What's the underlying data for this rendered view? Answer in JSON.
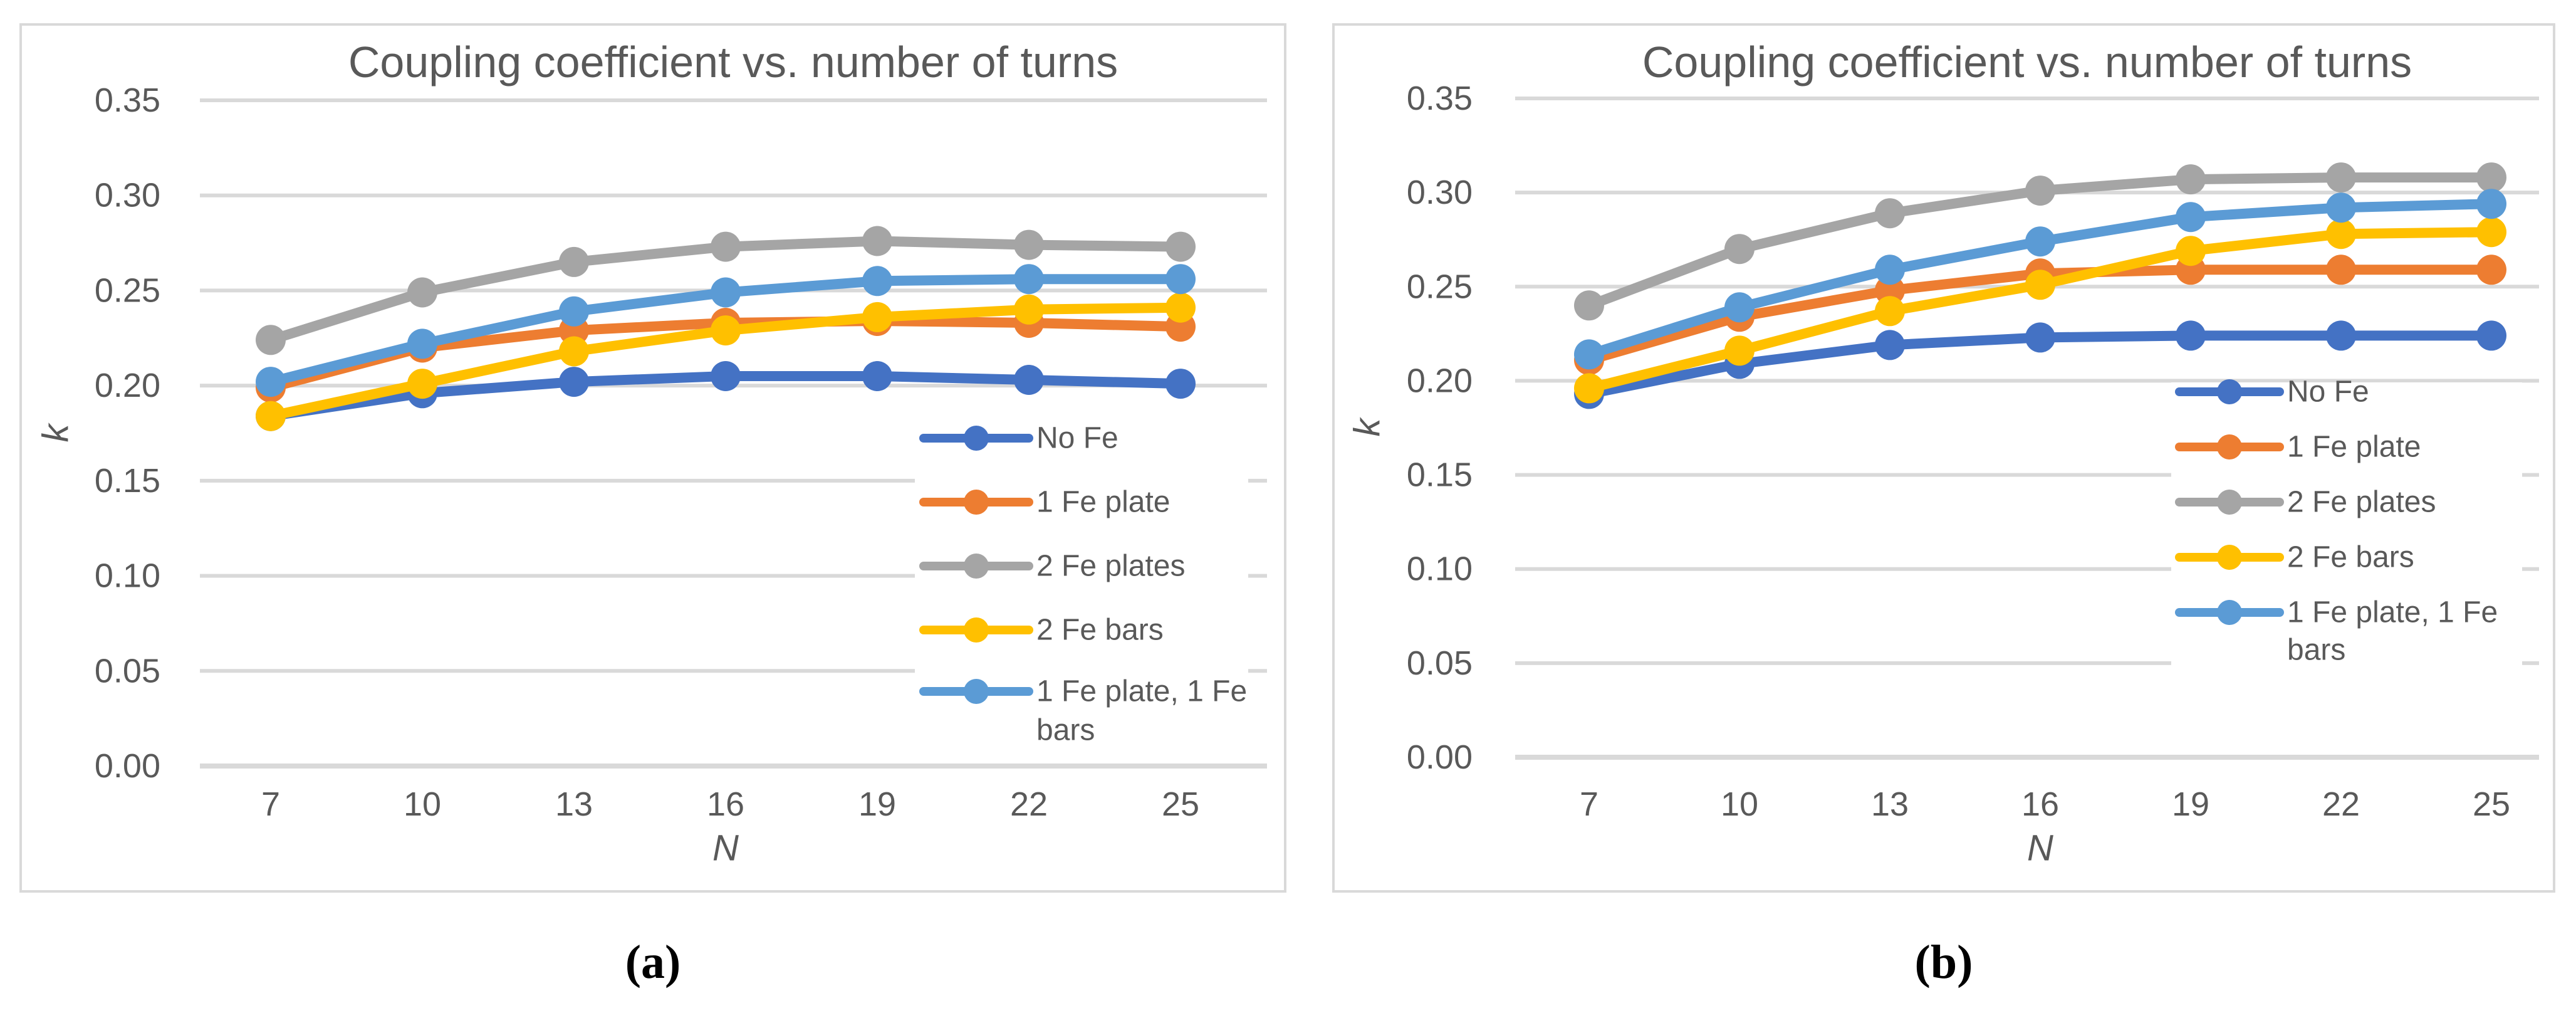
{
  "figure": {
    "captions": [
      "(a)",
      "(b)"
    ]
  },
  "palette": {
    "series_blue": "#4472C4",
    "series_orange": "#ED7D31",
    "series_gray": "#A5A5A5",
    "series_yellow": "#FFC000",
    "series_light_blue": "#5B9BD5",
    "gridline": "#D9D9D9",
    "panel_border": "#D9D9D9",
    "chart_text": "#595959",
    "caption_text": "#000000",
    "background": "#FFFFFF"
  },
  "chart_data": [
    {
      "type": "line",
      "panel": "a",
      "title": "Coupling coefficient vs. number of turns",
      "xlabel": "N",
      "ylabel": "k",
      "x": [
        7,
        10,
        13,
        16,
        19,
        22,
        25
      ],
      "x_tick_labels": [
        "7",
        "10",
        "13",
        "16",
        "19",
        "22",
        "25"
      ],
      "y_tick_labels": [
        "0.00",
        "0.05",
        "0.10",
        "0.15",
        "0.20",
        "0.25",
        "0.30",
        "0.35"
      ],
      "ylim": [
        0,
        0.35
      ],
      "ytick_step": 0.05,
      "grid": true,
      "legend_position": "inside-lower-right",
      "series": [
        {
          "name": "No Fe",
          "color": "#4472C4",
          "values": [
            0.184,
            0.196,
            0.202,
            0.205,
            0.205,
            0.203,
            0.201
          ]
        },
        {
          "name": "1 Fe plate",
          "color": "#ED7D31",
          "values": [
            0.199,
            0.22,
            0.229,
            0.233,
            0.234,
            0.233,
            0.231
          ]
        },
        {
          "name": "2 Fe plates",
          "color": "#A5A5A5",
          "values": [
            0.224,
            0.249,
            0.265,
            0.273,
            0.276,
            0.274,
            0.273
          ]
        },
        {
          "name": "2 Fe bars",
          "color": "#FFC000",
          "values": [
            0.184,
            0.201,
            0.218,
            0.229,
            0.236,
            0.24,
            0.241
          ]
        },
        {
          "name": "1 Fe plate, 1 Fe bars",
          "color": "#5B9BD5",
          "values": [
            0.202,
            0.222,
            0.239,
            0.249,
            0.255,
            0.256,
            0.256
          ]
        }
      ]
    },
    {
      "type": "line",
      "panel": "b",
      "title": "Coupling coefficient vs. number of turns",
      "xlabel": "N",
      "ylabel": "k",
      "x": [
        7,
        10,
        13,
        16,
        19,
        22,
        25
      ],
      "x_tick_labels": [
        "7",
        "10",
        "13",
        "16",
        "19",
        "22",
        "25"
      ],
      "y_tick_labels": [
        "0.00",
        "0.05",
        "0.10",
        "0.15",
        "0.20",
        "0.25",
        "0.30",
        "0.35"
      ],
      "ylim": [
        0,
        0.35
      ],
      "ytick_step": 0.05,
      "grid": true,
      "legend_position": "inside-right",
      "series": [
        {
          "name": "No Fe",
          "color": "#4472C4",
          "values": [
            0.193,
            0.209,
            0.219,
            0.223,
            0.224,
            0.224,
            0.224
          ]
        },
        {
          "name": "1 Fe plate",
          "color": "#ED7D31",
          "values": [
            0.211,
            0.234,
            0.248,
            0.257,
            0.259,
            0.259,
            0.259
          ]
        },
        {
          "name": "2 Fe plates",
          "color": "#A5A5A5",
          "values": [
            0.24,
            0.27,
            0.289,
            0.301,
            0.307,
            0.308,
            0.308
          ]
        },
        {
          "name": "2 Fe bars",
          "color": "#FFC000",
          "values": [
            0.196,
            0.216,
            0.237,
            0.251,
            0.269,
            0.278,
            0.279
          ]
        },
        {
          "name": "1 Fe plate, 1 Fe bars",
          "color": "#5B9BD5",
          "values": [
            0.214,
            0.239,
            0.259,
            0.274,
            0.287,
            0.292,
            0.294
          ]
        }
      ]
    }
  ]
}
